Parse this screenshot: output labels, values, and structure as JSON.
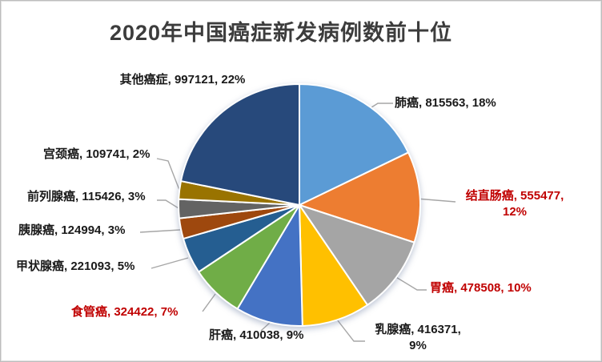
{
  "chart_data": {
    "type": "pie",
    "title": "2020年中国癌症新发病例数前十位",
    "legend_position": "none",
    "start_angle": "top",
    "direction": "clockwise",
    "data_label_style": "outside, category + value + percent, leader lines",
    "label_colors": {
      "normal": "#1A1A1A",
      "emphasis": "#C00000"
    },
    "slices": [
      {
        "name": "肺癌",
        "value": 815563,
        "pct": "18%",
        "label": "肺癌, 815563, 18%",
        "color": "#5B9BD5",
        "emphasis": false
      },
      {
        "name": "结直肠癌",
        "value": 555477,
        "pct": "12%",
        "label": "结直肠癌, 555477, 12%",
        "color": "#ED7D31",
        "emphasis": true
      },
      {
        "name": "胃癌",
        "value": 478508,
        "pct": "10%",
        "label": "胃癌, 478508, 10%",
        "color": "#A5A5A5",
        "emphasis": true
      },
      {
        "name": "乳腺癌",
        "value": 416371,
        "pct": "9%",
        "label": "乳腺癌, 416371, 9%",
        "color": "#FFC000",
        "emphasis": false
      },
      {
        "name": "肝癌",
        "value": 410038,
        "pct": "9%",
        "label": "肝癌, 410038, 9%",
        "color": "#4472C4",
        "emphasis": false
      },
      {
        "name": "食管癌",
        "value": 324422,
        "pct": "7%",
        "label": "食管癌, 324422, 7%",
        "color": "#70AD47",
        "emphasis": true
      },
      {
        "name": "甲状腺癌",
        "value": 221093,
        "pct": "5%",
        "label": "甲状腺癌, 221093, 5%",
        "color": "#255E91",
        "emphasis": false
      },
      {
        "name": "胰腺癌",
        "value": 124994,
        "pct": "3%",
        "label": "胰腺癌, 124994, 3%",
        "color": "#9E480E",
        "emphasis": false
      },
      {
        "name": "前列腺癌",
        "value": 115426,
        "pct": "3%",
        "label": "前列腺癌, 115426, 3%",
        "color": "#636363",
        "emphasis": false
      },
      {
        "name": "宫颈癌",
        "value": 109741,
        "pct": "2%",
        "label": "宫颈癌, 109741, 2%",
        "color": "#997300",
        "emphasis": false
      },
      {
        "name": "其他癌症",
        "value": 997121,
        "pct": "22%",
        "label": "其他癌症, 997121, 22%",
        "color": "#27497B",
        "emphasis": false
      }
    ]
  }
}
